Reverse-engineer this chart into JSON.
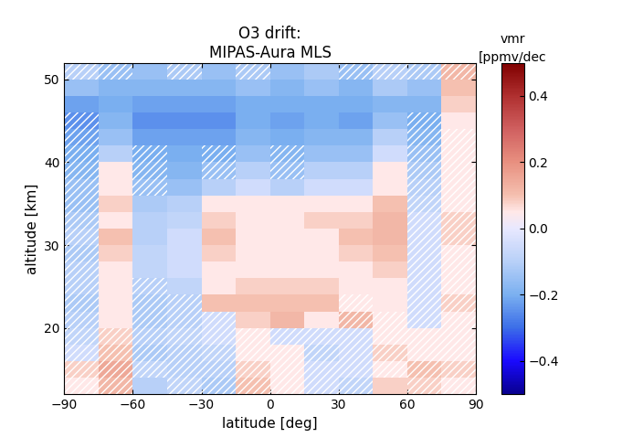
{
  "title_line1": "O3 drift:",
  "title_line2": "MIPAS-Aura MLS",
  "xlabel": "latitude [deg]",
  "ylabel": "altitude [km]",
  "cbar_label_line1": "vmr",
  "cbar_label_line2": "[ppmv/dec",
  "lat_edges": [
    -90,
    -75,
    -60,
    -45,
    -30,
    -15,
    0,
    15,
    30,
    45,
    60,
    75,
    90
  ],
  "alt_edges": [
    12,
    14,
    16,
    18,
    20,
    22,
    24,
    26,
    28,
    30,
    32,
    34,
    36,
    38,
    40,
    42,
    44,
    46,
    48,
    50,
    52
  ],
  "vmin": -0.5,
  "vmax": 0.5,
  "xlim": [
    -90,
    90
  ],
  "ylim": [
    12,
    52
  ],
  "xticks": [
    -90,
    -60,
    -30,
    0,
    30,
    60,
    90
  ],
  "yticks": [
    20,
    30,
    40,
    50
  ],
  "data": [
    [
      0.05,
      0.12,
      -0.1,
      -0.08,
      -0.12,
      0.1,
      0.05,
      -0.05,
      -0.08,
      0.08,
      0.08,
      0.05
    ],
    [
      0.08,
      0.15,
      -0.08,
      -0.1,
      -0.1,
      0.08,
      0.05,
      -0.05,
      -0.05,
      0.05,
      0.1,
      0.08
    ],
    [
      -0.05,
      0.1,
      -0.12,
      -0.1,
      -0.08,
      0.05,
      0.05,
      -0.08,
      -0.05,
      0.08,
      0.05,
      0.05
    ],
    [
      -0.08,
      0.08,
      -0.1,
      -0.08,
      -0.05,
      0.05,
      -0.05,
      -0.05,
      -0.05,
      0.05,
      0.05,
      0.05
    ],
    [
      -0.1,
      0.05,
      -0.12,
      -0.1,
      -0.05,
      0.08,
      0.12,
      0.05,
      0.12,
      0.05,
      -0.05,
      0.05
    ],
    [
      -0.12,
      0.05,
      -0.12,
      -0.1,
      0.1,
      0.1,
      0.1,
      0.1,
      0.05,
      0.05,
      -0.05,
      0.08
    ],
    [
      -0.1,
      0.05,
      -0.1,
      -0.08,
      0.05,
      0.08,
      0.08,
      0.08,
      0.05,
      0.05,
      -0.05,
      0.05
    ],
    [
      -0.1,
      0.05,
      -0.08,
      -0.05,
      0.05,
      0.05,
      0.05,
      0.05,
      0.05,
      0.08,
      -0.05,
      0.05
    ],
    [
      -0.12,
      0.08,
      -0.08,
      -0.05,
      0.08,
      0.05,
      0.05,
      0.05,
      0.08,
      0.1,
      -0.05,
      0.05
    ],
    [
      -0.1,
      0.1,
      -0.1,
      -0.05,
      0.1,
      0.05,
      0.05,
      0.05,
      0.1,
      0.12,
      -0.05,
      0.08
    ],
    [
      -0.12,
      0.05,
      -0.1,
      -0.08,
      0.08,
      0.05,
      0.05,
      0.08,
      0.08,
      0.12,
      -0.05,
      0.08
    ],
    [
      -0.15,
      0.08,
      -0.12,
      -0.1,
      0.05,
      0.05,
      0.05,
      0.05,
      0.05,
      0.1,
      -0.08,
      0.05
    ],
    [
      -0.15,
      0.05,
      -0.15,
      -0.15,
      -0.1,
      -0.05,
      -0.1,
      -0.05,
      -0.05,
      0.05,
      -0.1,
      0.05
    ],
    [
      -0.18,
      0.05,
      -0.18,
      -0.18,
      -0.15,
      -0.1,
      -0.15,
      -0.1,
      -0.1,
      0.05,
      -0.12,
      0.05
    ],
    [
      -0.2,
      -0.1,
      -0.2,
      -0.2,
      -0.2,
      -0.15,
      -0.18,
      -0.15,
      -0.15,
      -0.05,
      -0.15,
      0.05
    ],
    [
      -0.22,
      -0.15,
      -0.22,
      -0.22,
      -0.22,
      -0.18,
      -0.2,
      -0.18,
      -0.18,
      -0.1,
      -0.18,
      0.05
    ],
    [
      -0.25,
      -0.18,
      -0.25,
      -0.25,
      -0.25,
      -0.2,
      -0.22,
      -0.2,
      -0.22,
      -0.15,
      -0.2,
      0.05
    ],
    [
      -0.22,
      -0.2,
      -0.22,
      -0.22,
      -0.22,
      -0.2,
      -0.2,
      -0.2,
      -0.2,
      -0.18,
      -0.18,
      0.08
    ],
    [
      -0.15,
      -0.18,
      -0.18,
      -0.18,
      -0.18,
      -0.15,
      -0.18,
      -0.15,
      -0.18,
      -0.12,
      -0.15,
      0.1
    ],
    [
      -0.1,
      -0.15,
      -0.15,
      -0.12,
      -0.15,
      -0.12,
      -0.15,
      -0.12,
      -0.15,
      -0.1,
      -0.12,
      0.12
    ]
  ],
  "hatch_mask": [
    [
      true,
      true,
      false,
      true,
      true,
      true,
      true,
      true,
      true,
      false,
      true,
      true
    ],
    [
      true,
      true,
      true,
      true,
      true,
      true,
      true,
      true,
      true,
      true,
      true,
      true
    ],
    [
      true,
      true,
      true,
      true,
      true,
      true,
      true,
      true,
      true,
      true,
      true,
      true
    ],
    [
      true,
      true,
      true,
      true,
      true,
      true,
      true,
      true,
      true,
      true,
      true,
      true
    ],
    [
      true,
      false,
      true,
      true,
      true,
      false,
      false,
      false,
      true,
      true,
      true,
      true
    ],
    [
      true,
      false,
      true,
      true,
      false,
      false,
      false,
      false,
      true,
      false,
      true,
      true
    ],
    [
      true,
      false,
      true,
      false,
      false,
      false,
      false,
      false,
      false,
      false,
      true,
      true
    ],
    [
      true,
      false,
      false,
      false,
      false,
      false,
      false,
      false,
      false,
      false,
      true,
      true
    ],
    [
      true,
      false,
      false,
      false,
      false,
      false,
      false,
      false,
      false,
      false,
      true,
      true
    ],
    [
      true,
      false,
      false,
      false,
      false,
      false,
      false,
      false,
      false,
      false,
      true,
      true
    ],
    [
      true,
      false,
      false,
      false,
      false,
      false,
      false,
      false,
      false,
      false,
      true,
      true
    ],
    [
      true,
      false,
      false,
      false,
      false,
      false,
      false,
      false,
      false,
      false,
      true,
      true
    ],
    [
      true,
      false,
      true,
      false,
      false,
      false,
      false,
      false,
      false,
      false,
      true,
      true
    ],
    [
      true,
      false,
      true,
      false,
      true,
      false,
      true,
      false,
      false,
      false,
      true,
      true
    ],
    [
      true,
      false,
      true,
      false,
      true,
      false,
      true,
      false,
      false,
      false,
      true,
      true
    ],
    [
      true,
      false,
      false,
      false,
      false,
      false,
      false,
      false,
      false,
      false,
      true,
      true
    ],
    [
      true,
      false,
      false,
      false,
      false,
      false,
      false,
      false,
      false,
      false,
      true,
      false
    ],
    [
      false,
      false,
      false,
      false,
      false,
      false,
      false,
      false,
      false,
      false,
      false,
      false
    ],
    [
      false,
      false,
      false,
      false,
      false,
      false,
      false,
      false,
      false,
      false,
      false,
      false
    ],
    [
      true,
      true,
      false,
      true,
      false,
      true,
      false,
      false,
      true,
      true,
      true,
      true
    ]
  ],
  "hatch_color": "white",
  "hatch_style": "////",
  "background_color": "white"
}
